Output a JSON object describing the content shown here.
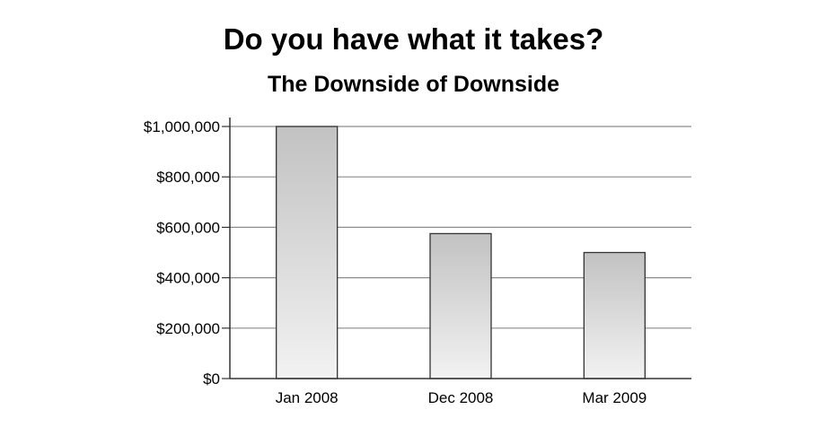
{
  "chart_data": {
    "type": "bar",
    "title": "Do you have what it takes?",
    "subtitle": "The Downside of Downside",
    "categories": [
      "Jan 2008",
      "Dec 2008",
      "Mar 2009"
    ],
    "values": [
      1000000,
      575000,
      500000
    ],
    "xlabel": "",
    "ylabel": "",
    "ylim": [
      0,
      1000000
    ],
    "yticks": [
      0,
      200000,
      400000,
      600000,
      800000,
      1000000
    ],
    "ytick_labels": [
      "$0",
      "$200,000",
      "$400,000",
      "$600,000",
      "$800,000",
      "$1,000,000"
    ],
    "grid": true,
    "legend": "none",
    "colors": {
      "bar_top": "#c2c2c2",
      "bar_bottom": "#f2f2f2",
      "bar_stroke": "#333333",
      "grid": "#8c8c8c",
      "axis": "#333333"
    }
  }
}
